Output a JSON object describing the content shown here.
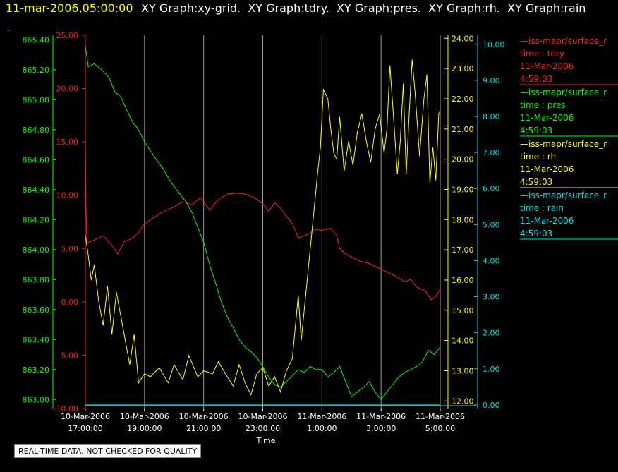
{
  "header": {
    "time": "11-mar-2006,05:00:00",
    "graphs": [
      "XY Graph:xy-grid.",
      "XY Graph:tdry.",
      "XY Graph:pres.",
      "XY Graph:rh.",
      "XY Graph:rain"
    ]
  },
  "dot": ".",
  "footer_note": "REAL-TIME DATA, NOT CHECKED FOR QUALITY",
  "colors": {
    "tdry": "#ff2020",
    "pres": "#00ff00",
    "rh": "#ffff00",
    "rain": "#00e0e0",
    "header_time": "#ffff00",
    "grid": "#9a9a9a",
    "text": "#ffffff"
  },
  "legend": [
    {
      "line": "—iss-mapr/surface_r",
      "var": "time : tdry",
      "date": "11-Mar-2006",
      "time": "4:59:03",
      "color": "#ff2020"
    },
    {
      "line": "—iss-mapr/surface_r",
      "var": "time : pres",
      "date": "11-Mar-2006",
      "time": "4:59:03",
      "color": "#00ff00"
    },
    {
      "line": "—iss-mapr/surface_r",
      "var": "time : rh",
      "date": "11-Mar-2006",
      "time": "4:59:03",
      "color": "#ffff00"
    },
    {
      "line": "—iss-mapr/surface_r",
      "var": "time : rain",
      "date": "11-Mar-2006",
      "time": "4:59:03",
      "color": "#00e0e0"
    }
  ],
  "chart_data": {
    "type": "line",
    "xlabel": "Time",
    "x_ticks": [
      {
        "date": "10-Mar-2006",
        "time": "17:00:00"
      },
      {
        "date": "10-Mar-2006",
        "time": "19:00:00"
      },
      {
        "date": "10-Mar-2006",
        "time": "21:00:00"
      },
      {
        "date": "10-Mar-2006",
        "time": "23:00:00"
      },
      {
        "date": "11-Mar-2006",
        "time": "1:00:00"
      },
      {
        "date": "11-Mar-2006",
        "time": "3:00:00"
      },
      {
        "date": "11-Mar-2006",
        "time": "5:00:00"
      }
    ],
    "x_range_hours": [
      0,
      12
    ],
    "axes": {
      "pres": {
        "ticks": [
          "865.40",
          "865.20",
          "865.00",
          "864.80",
          "864.60",
          "864.40",
          "864.20",
          "864.00",
          "863.80",
          "863.60",
          "863.40",
          "863.20",
          "863.00"
        ],
        "range": [
          862.94,
          865.43
        ]
      },
      "tdry": {
        "ticks": [
          "25.00",
          "20.00",
          "15.00",
          "10.00",
          "5.00",
          "0.00",
          "-5.00",
          "-10.00"
        ],
        "range": [
          -10,
          25
        ]
      },
      "rh": {
        "ticks": [
          "24.00",
          "23.00",
          "22.00",
          "21.00",
          "20.00",
          "19.00",
          "18.00",
          "17.00",
          "16.00",
          "15.00",
          "14.00",
          "13.00",
          "12.00"
        ],
        "range": [
          11.75,
          24.1
        ]
      },
      "rain": {
        "ticks": [
          "10.00",
          "9.00",
          "8.00",
          "7.00",
          "6.00",
          "5.00",
          "4.00",
          "3.00",
          "2.00",
          "1.00",
          "0.00"
        ],
        "range": [
          -0.1,
          10.25
        ]
      }
    },
    "series": [
      {
        "key": "tdry",
        "color": "#ff2020",
        "points": [
          [
            0,
            15.6
          ],
          [
            0.02,
            9.2
          ],
          [
            0.05,
            5.5
          ],
          [
            0.3,
            5.8
          ],
          [
            0.6,
            6.2
          ],
          [
            0.9,
            5.3
          ],
          [
            1.1,
            4.5
          ],
          [
            1.3,
            5.6
          ],
          [
            1.6,
            6.0
          ],
          [
            1.8,
            6.5
          ],
          [
            2.0,
            7.3
          ],
          [
            2.3,
            7.9
          ],
          [
            2.6,
            8.4
          ],
          [
            3.0,
            8.9
          ],
          [
            3.3,
            9.4
          ],
          [
            3.6,
            9.1
          ],
          [
            3.9,
            9.8
          ],
          [
            4.2,
            8.6
          ],
          [
            4.5,
            9.6
          ],
          [
            4.8,
            10.1
          ],
          [
            5.1,
            10.2
          ],
          [
            5.4,
            10.1
          ],
          [
            5.7,
            9.8
          ],
          [
            6.0,
            9.2
          ],
          [
            6.2,
            8.5
          ],
          [
            6.4,
            9.3
          ],
          [
            6.6,
            8.8
          ],
          [
            6.8,
            8.0
          ],
          [
            7.0,
            7.4
          ],
          [
            7.2,
            6.0
          ],
          [
            7.5,
            6.3
          ],
          [
            7.8,
            6.8
          ],
          [
            8.0,
            6.7
          ],
          [
            8.3,
            6.9
          ],
          [
            8.5,
            6.2
          ],
          [
            8.6,
            5.0
          ],
          [
            8.8,
            4.5
          ],
          [
            9.0,
            4.2
          ],
          [
            9.3,
            3.8
          ],
          [
            9.6,
            3.6
          ],
          [
            9.9,
            3.2
          ],
          [
            10.2,
            2.8
          ],
          [
            10.5,
            2.4
          ],
          [
            10.8,
            1.9
          ],
          [
            11.0,
            2.1
          ],
          [
            11.2,
            1.4
          ],
          [
            11.5,
            1.0
          ],
          [
            11.7,
            0.2
          ],
          [
            11.85,
            0.5
          ],
          [
            12.0,
            1.2
          ]
        ]
      },
      {
        "key": "pres",
        "color": "#00ff00",
        "points": [
          [
            0,
            865.36
          ],
          [
            0.1,
            865.22
          ],
          [
            0.3,
            865.24
          ],
          [
            0.5,
            865.21
          ],
          [
            0.8,
            865.15
          ],
          [
            1.0,
            865.05
          ],
          [
            1.2,
            865.02
          ],
          [
            1.4,
            864.93
          ],
          [
            1.6,
            864.85
          ],
          [
            1.8,
            864.8
          ],
          [
            2.0,
            864.72
          ],
          [
            2.2,
            864.66
          ],
          [
            2.4,
            864.6
          ],
          [
            2.6,
            864.55
          ],
          [
            2.8,
            864.48
          ],
          [
            3.0,
            864.42
          ],
          [
            3.2,
            864.37
          ],
          [
            3.4,
            864.32
          ],
          [
            3.6,
            864.25
          ],
          [
            3.8,
            864.15
          ],
          [
            4.0,
            864.05
          ],
          [
            4.2,
            863.9
          ],
          [
            4.4,
            863.78
          ],
          [
            4.6,
            863.65
          ],
          [
            4.8,
            863.55
          ],
          [
            5.0,
            863.48
          ],
          [
            5.2,
            863.4
          ],
          [
            5.4,
            863.35
          ],
          [
            5.6,
            863.32
          ],
          [
            5.8,
            863.28
          ],
          [
            6.0,
            863.22
          ],
          [
            6.2,
            863.15
          ],
          [
            6.4,
            863.1
          ],
          [
            6.6,
            863.08
          ],
          [
            6.8,
            863.12
          ],
          [
            7.0,
            863.16
          ],
          [
            7.2,
            863.2
          ],
          [
            7.4,
            863.18
          ],
          [
            7.6,
            863.22
          ],
          [
            7.8,
            863.2
          ],
          [
            8.0,
            863.2
          ],
          [
            8.2,
            863.15
          ],
          [
            8.4,
            863.18
          ],
          [
            8.6,
            863.22
          ],
          [
            8.8,
            863.12
          ],
          [
            9.0,
            863.02
          ],
          [
            9.2,
            863.05
          ],
          [
            9.4,
            863.08
          ],
          [
            9.6,
            863.12
          ],
          [
            9.8,
            863.05
          ],
          [
            10.0,
            863.0
          ],
          [
            10.2,
            863.05
          ],
          [
            10.4,
            863.1
          ],
          [
            10.6,
            863.15
          ],
          [
            10.8,
            863.18
          ],
          [
            11.0,
            863.2
          ],
          [
            11.2,
            863.22
          ],
          [
            11.4,
            863.25
          ],
          [
            11.6,
            863.33
          ],
          [
            11.8,
            863.3
          ],
          [
            12.0,
            863.35
          ]
        ]
      },
      {
        "key": "rh",
        "color": "#ffff00",
        "points": [
          [
            0,
            17.5
          ],
          [
            0.1,
            16.8
          ],
          [
            0.2,
            16.0
          ],
          [
            0.3,
            16.5
          ],
          [
            0.45,
            15.3
          ],
          [
            0.6,
            14.5
          ],
          [
            0.75,
            15.8
          ],
          [
            0.9,
            14.2
          ],
          [
            1.05,
            15.6
          ],
          [
            1.2,
            14.8
          ],
          [
            1.35,
            14.0
          ],
          [
            1.5,
            13.2
          ],
          [
            1.65,
            14.2
          ],
          [
            1.8,
            12.6
          ],
          [
            2.0,
            12.9
          ],
          [
            2.2,
            12.8
          ],
          [
            2.5,
            13.1
          ],
          [
            2.8,
            12.6
          ],
          [
            3.0,
            13.2
          ],
          [
            3.3,
            12.7
          ],
          [
            3.5,
            13.5
          ],
          [
            3.8,
            12.8
          ],
          [
            4.0,
            13.0
          ],
          [
            4.3,
            12.9
          ],
          [
            4.5,
            13.3
          ],
          [
            4.8,
            12.8
          ],
          [
            5.0,
            12.5
          ],
          [
            5.2,
            13.2
          ],
          [
            5.4,
            12.6
          ],
          [
            5.6,
            12.2
          ],
          [
            5.8,
            12.9
          ],
          [
            6.0,
            13.1
          ],
          [
            6.2,
            12.5
          ],
          [
            6.4,
            12.8
          ],
          [
            6.6,
            12.3
          ],
          [
            6.8,
            13.0
          ],
          [
            7.0,
            13.4
          ],
          [
            7.2,
            15.5
          ],
          [
            7.3,
            14.0
          ],
          [
            7.4,
            15.0
          ],
          [
            7.5,
            16.0
          ],
          [
            7.65,
            17.5
          ],
          [
            7.75,
            18.5
          ],
          [
            7.85,
            19.5
          ],
          [
            7.95,
            20.4
          ],
          [
            8.05,
            22.3
          ],
          [
            8.2,
            22.0
          ],
          [
            8.3,
            21.0
          ],
          [
            8.4,
            20.2
          ],
          [
            8.5,
            20.0
          ],
          [
            8.6,
            21.4
          ],
          [
            8.75,
            19.6
          ],
          [
            8.9,
            20.6
          ],
          [
            9.05,
            19.8
          ],
          [
            9.2,
            20.9
          ],
          [
            9.35,
            21.5
          ],
          [
            9.5,
            20.6
          ],
          [
            9.65,
            19.9
          ],
          [
            9.8,
            21.0
          ],
          [
            9.95,
            21.5
          ],
          [
            10.1,
            20.2
          ],
          [
            10.2,
            21.0
          ],
          [
            10.3,
            23.1
          ],
          [
            10.45,
            21.0
          ],
          [
            10.55,
            19.5
          ],
          [
            10.65,
            20.6
          ],
          [
            10.75,
            22.5
          ],
          [
            10.85,
            19.5
          ],
          [
            10.95,
            21.5
          ],
          [
            11.05,
            23.3
          ],
          [
            11.15,
            22.2
          ],
          [
            11.3,
            20.1
          ],
          [
            11.45,
            22.0
          ],
          [
            11.55,
            22.8
          ],
          [
            11.65,
            19.2
          ],
          [
            11.75,
            20.4
          ],
          [
            11.85,
            19.3
          ],
          [
            11.95,
            21.5
          ],
          [
            12.0,
            21.6
          ]
        ]
      },
      {
        "key": "rain",
        "color": "#00e0e0",
        "points": [
          [
            0,
            0.0
          ],
          [
            12.0,
            0.0
          ]
        ]
      }
    ]
  }
}
